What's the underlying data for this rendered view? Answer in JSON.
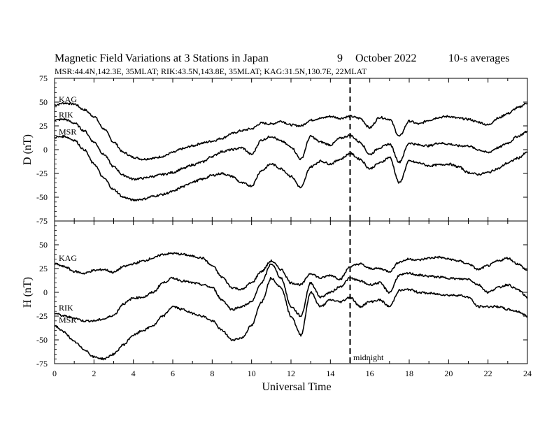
{
  "title": {
    "main": "Magnetic Field Variations at 3 Stations in Japan",
    "day": "9",
    "date": "October 2022",
    "avg": "10-s averages",
    "subtitle": "MSR:44.4N,142.3E, 35MLAT;  RIK:43.5N,143.8E, 35MLAT;  KAG:31.5N,130.7E, 22MLAT"
  },
  "xlabel": "Universal Time",
  "annotation": "midnight",
  "chart_data": [
    {
      "type": "line",
      "panel": "D",
      "ylabel": "D (nT)",
      "xlim": [
        0,
        24
      ],
      "ylim": [
        -75,
        75
      ],
      "xticks": [
        0,
        2,
        4,
        6,
        8,
        10,
        12,
        14,
        16,
        18,
        20,
        22,
        24
      ],
      "yticks": [
        -75,
        -50,
        -25,
        0,
        25,
        50,
        75
      ],
      "marker_line_x": 15,
      "series": [
        {
          "name": "KAG",
          "x": [
            0,
            0.5,
            1,
            1.5,
            2,
            2.5,
            3,
            3.5,
            4,
            4.5,
            5,
            5.5,
            6,
            6.5,
            7,
            7.5,
            8,
            8.5,
            9,
            9.5,
            10,
            10.5,
            11,
            11.5,
            12,
            12.5,
            13,
            13.5,
            14,
            14.5,
            15,
            15.5,
            16,
            16.5,
            17,
            17.5,
            18,
            18.5,
            19,
            19.5,
            20,
            20.5,
            21,
            21.5,
            22,
            22.5,
            23,
            23.5,
            24
          ],
          "y": [
            47,
            49,
            48,
            42,
            35,
            22,
            8,
            -3,
            -8,
            -10,
            -9,
            -7,
            -3,
            1,
            4,
            7,
            9,
            12,
            17,
            20,
            22,
            28,
            27,
            30,
            26,
            25,
            31,
            33,
            35,
            33,
            35,
            33,
            23,
            34,
            32,
            14,
            30,
            27,
            31,
            34,
            35,
            33,
            32,
            29,
            26,
            33,
            38,
            44,
            49
          ]
        },
        {
          "name": "RIK",
          "x": [
            0,
            0.5,
            1,
            1.5,
            2,
            2.5,
            3,
            3.5,
            4,
            4.5,
            5,
            5.5,
            6,
            6.5,
            7,
            7.5,
            8,
            8.5,
            9,
            9.5,
            10,
            10.5,
            11,
            11.5,
            12,
            12.5,
            13,
            13.5,
            14,
            14.5,
            15,
            15.5,
            16,
            16.5,
            17,
            17.5,
            18,
            18.5,
            19,
            19.5,
            20,
            20.5,
            21,
            21.5,
            22,
            22.5,
            23,
            23.5,
            24
          ],
          "y": [
            31,
            32,
            28,
            20,
            8,
            -5,
            -18,
            -27,
            -31,
            -30,
            -28,
            -26,
            -24,
            -20,
            -16,
            -13,
            -7,
            -2,
            0,
            2,
            -5,
            10,
            14,
            9,
            3,
            -10,
            14,
            8,
            5,
            12,
            15,
            8,
            -5,
            2,
            6,
            -13,
            7,
            5,
            4,
            7,
            6,
            4,
            4,
            0,
            -3,
            2,
            7,
            14,
            19
          ]
        },
        {
          "name": "MSR",
          "x": [
            0,
            0.5,
            1,
            1.5,
            2,
            2.5,
            3,
            3.5,
            4,
            4.5,
            5,
            5.5,
            6,
            6.5,
            7,
            7.5,
            8,
            8.5,
            9,
            9.5,
            10,
            10.5,
            11,
            11.5,
            12,
            12.5,
            13,
            13.5,
            14,
            14.5,
            15,
            15.5,
            16,
            16.5,
            17,
            17.5,
            18,
            18.5,
            19,
            19.5,
            20,
            20.5,
            21,
            21.5,
            22,
            22.5,
            23,
            23.5,
            24
          ],
          "y": [
            13,
            14,
            10,
            0,
            -15,
            -30,
            -42,
            -50,
            -53,
            -52,
            -49,
            -47,
            -44,
            -39,
            -34,
            -31,
            -27,
            -25,
            -28,
            -35,
            -38,
            -22,
            -15,
            -20,
            -28,
            -40,
            -18,
            -12,
            -15,
            -10,
            -4,
            -10,
            -20,
            -14,
            -8,
            -35,
            -12,
            -14,
            -17,
            -16,
            -15,
            -18,
            -24,
            -26,
            -24,
            -20,
            -14,
            -9,
            -3
          ]
        }
      ]
    },
    {
      "type": "line",
      "panel": "H",
      "ylabel": "H (nT)",
      "xlim": [
        0,
        24
      ],
      "ylim": [
        -75,
        75
      ],
      "xticks": [
        0,
        2,
        4,
        6,
        8,
        10,
        12,
        14,
        16,
        18,
        20,
        22,
        24
      ],
      "yticks": [
        -75,
        -50,
        -25,
        0,
        25,
        50,
        75
      ],
      "marker_line_x": 15,
      "series": [
        {
          "name": "KAG",
          "x": [
            0,
            0.5,
            1,
            1.5,
            2,
            2.5,
            3,
            3.5,
            4,
            4.5,
            5,
            5.5,
            6,
            6.5,
            7,
            7.5,
            8,
            8.5,
            9,
            9.5,
            10,
            10.5,
            11,
            11.5,
            12,
            12.5,
            13,
            13.5,
            14,
            14.5,
            15,
            15.5,
            16,
            16.5,
            17,
            17.5,
            18,
            18.5,
            19,
            19.5,
            20,
            20.5,
            21,
            21.5,
            22,
            22.5,
            23,
            23.5,
            24
          ],
          "y": [
            30,
            27,
            22,
            20,
            23,
            24,
            21,
            27,
            30,
            33,
            36,
            40,
            41,
            40,
            38,
            36,
            28,
            16,
            5,
            3,
            10,
            22,
            33,
            24,
            10,
            8,
            20,
            15,
            18,
            14,
            27,
            30,
            25,
            25,
            22,
            32,
            35,
            34,
            36,
            37,
            35,
            33,
            30,
            24,
            28,
            33,
            36,
            30,
            23
          ]
        },
        {
          "name": "RIK",
          "x": [
            0,
            0.5,
            1,
            1.5,
            2,
            2.5,
            3,
            3.5,
            4,
            4.5,
            5,
            5.5,
            6,
            6.5,
            7,
            7.5,
            8,
            8.5,
            9,
            9.5,
            10,
            10.5,
            11,
            11.5,
            12,
            12.5,
            13,
            13.5,
            14,
            14.5,
            15,
            15.5,
            16,
            16.5,
            17,
            17.5,
            18,
            18.5,
            19,
            19.5,
            20,
            20.5,
            21,
            21.5,
            22,
            22.5,
            23,
            23.5,
            24
          ],
          "y": [
            -22,
            -25,
            -27,
            -30,
            -30,
            -28,
            -24,
            -12,
            -6,
            -5,
            0,
            10,
            15,
            12,
            10,
            8,
            5,
            -8,
            -18,
            -15,
            -10,
            10,
            30,
            15,
            -15,
            -25,
            10,
            -5,
            0,
            6,
            15,
            12,
            8,
            10,
            0,
            18,
            20,
            18,
            17,
            16,
            15,
            14,
            14,
            8,
            0,
            5,
            8,
            3,
            -5
          ]
        },
        {
          "name": "MSR",
          "x": [
            0,
            0.5,
            1,
            1.5,
            2,
            2.5,
            3,
            3.5,
            4,
            4.5,
            5,
            5.5,
            6,
            6.5,
            7,
            7.5,
            8,
            8.5,
            9,
            9.5,
            10,
            10.5,
            11,
            11.5,
            12,
            12.5,
            13,
            13.5,
            14,
            14.5,
            15,
            15.5,
            16,
            16.5,
            17,
            17.5,
            18,
            18.5,
            19,
            19.5,
            20,
            20.5,
            21,
            21.5,
            22,
            22.5,
            23,
            23.5,
            24
          ],
          "y": [
            -35,
            -42,
            -52,
            -60,
            -68,
            -70,
            -65,
            -55,
            -45,
            -40,
            -35,
            -25,
            -15,
            -18,
            -22,
            -25,
            -30,
            -40,
            -50,
            -48,
            -35,
            -10,
            15,
            5,
            -25,
            -45,
            0,
            -15,
            -8,
            -10,
            -5,
            -15,
            -10,
            -8,
            -15,
            2,
            3,
            0,
            -1,
            -2,
            -3,
            -3,
            -5,
            -15,
            -15,
            -15,
            -18,
            -20,
            -25
          ]
        }
      ]
    }
  ]
}
